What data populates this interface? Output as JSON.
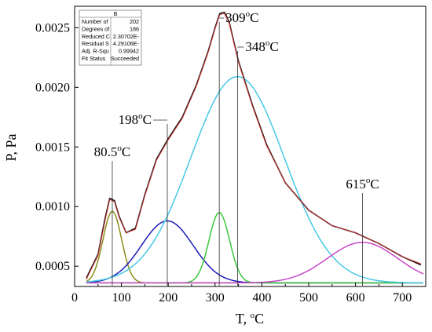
{
  "chart_data": {
    "type": "line",
    "xlabel": "T, °C",
    "xlabel_main": "T, ",
    "xlabel_sup": "o",
    "xlabel_unit": "C",
    "ylabel": "P, Pa",
    "xlim": [
      0,
      750
    ],
    "ylim": [
      0.00033,
      0.00268
    ],
    "xticks": [
      0,
      100,
      200,
      300,
      400,
      500,
      600,
      700
    ],
    "xtick_labels": [
      "0",
      "100",
      "200",
      "300",
      "400",
      "500",
      "600",
      "700"
    ],
    "yticks": [
      0.0005,
      0.001,
      0.0015,
      0.002,
      0.0025
    ],
    "ytick_labels": [
      "0.0005",
      "0.0010",
      "0.0015",
      "0.0020",
      "0.0025"
    ],
    "grid": false,
    "baseline": 0.00036,
    "series": [
      {
        "color": "#1a1a1a",
        "role": "measured",
        "x": [
          25,
          50,
          65,
          75,
          85,
          95,
          110,
          130,
          150,
          175,
          200,
          230,
          260,
          285,
          300,
          310,
          320,
          330,
          350,
          380,
          410,
          450,
          500,
          550,
          600,
          650,
          700,
          740
        ],
        "y": [
          0.0004,
          0.0006,
          0.0009,
          0.00107,
          0.00105,
          0.00092,
          0.00078,
          0.00082,
          0.0011,
          0.0014,
          0.00157,
          0.00175,
          0.00202,
          0.0023,
          0.0025,
          0.00262,
          0.00263,
          0.00255,
          0.00222,
          0.00185,
          0.00152,
          0.0012,
          0.00097,
          0.00084,
          0.00078,
          0.00069,
          0.00058,
          0.00051
        ]
      },
      {
        "color": "#c83030",
        "role": "cumulative fit",
        "x": [
          25,
          50,
          65,
          75,
          85,
          95,
          110,
          130,
          150,
          175,
          200,
          230,
          260,
          285,
          300,
          310,
          320,
          330,
          350,
          380,
          410,
          450,
          500,
          550,
          600,
          650,
          700,
          740
        ],
        "y": [
          0.00039,
          0.00059,
          0.00088,
          0.00106,
          0.00104,
          0.00091,
          0.00078,
          0.00081,
          0.00109,
          0.00139,
          0.00156,
          0.00174,
          0.00201,
          0.00229,
          0.00249,
          0.00261,
          0.00262,
          0.00254,
          0.00221,
          0.00184,
          0.00151,
          0.0012,
          0.00097,
          0.00084,
          0.00078,
          0.00069,
          0.00058,
          0.00052
        ]
      }
    ],
    "peaks": [
      {
        "center": 80.5,
        "height": 0.0006,
        "width": 20,
        "color": "#8b8b1a",
        "label_main": "80.5",
        "label_sup": "o",
        "label_unit": "C"
      },
      {
        "center": 198,
        "height": 0.00052,
        "width": 55,
        "color": "#1a1ab4",
        "label_main": "198",
        "label_sup": "o",
        "label_unit": "C"
      },
      {
        "center": 309,
        "height": 0.00059,
        "width": 22,
        "color": "#3cc83c",
        "label_main": "309",
        "label_sup": "o",
        "label_unit": "C"
      },
      {
        "center": 348,
        "height": 0.00173,
        "width": 100,
        "color": "#46c8e6",
        "label_main": "348",
        "label_sup": "o",
        "label_unit": "C"
      },
      {
        "center": 615,
        "height": 0.00034,
        "width": 75,
        "color": "#c846c8",
        "label_main": "615",
        "label_sup": "o",
        "label_unit": "C"
      }
    ]
  },
  "fit_table": {
    "header": "B",
    "rows": [
      {
        "label": "Number of",
        "value": "202"
      },
      {
        "label": "Degrees of",
        "value": "186"
      },
      {
        "label": "Reduced C",
        "value": "2.30702E-"
      },
      {
        "label": "Residual S",
        "value": "4.29106E-"
      },
      {
        "label": "Adj. R-Squ",
        "value": "0.99942"
      },
      {
        "label": "Fit Status",
        "value": "Succeeded"
      }
    ]
  }
}
